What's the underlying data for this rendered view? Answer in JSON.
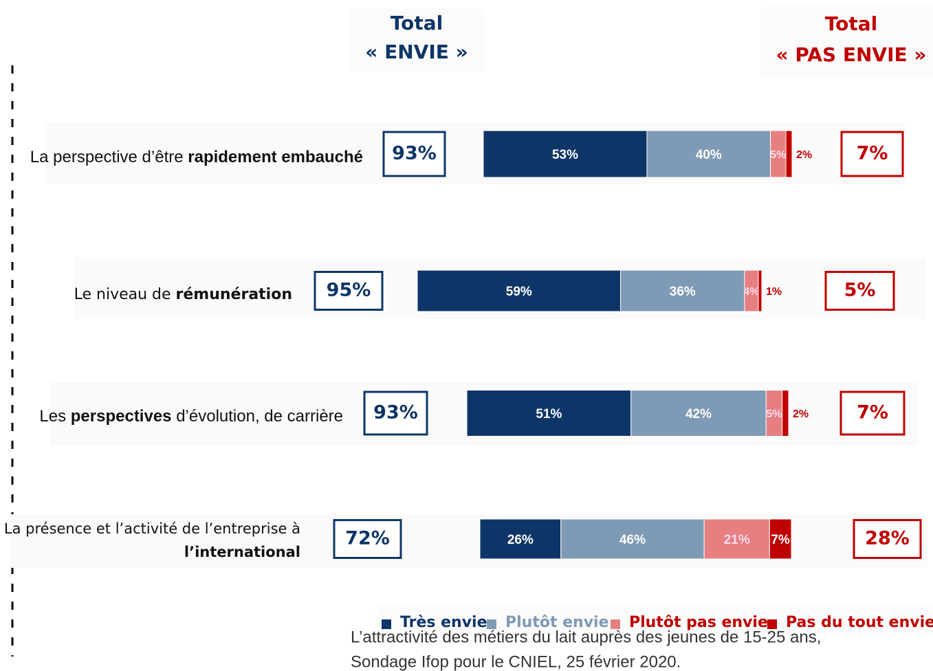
{
  "chart_data": {
    "type": "bar",
    "orientation": "horizontal",
    "stacked": true,
    "header_left": {
      "line1": "Total",
      "line2": "« ENVIE »"
    },
    "header_right": {
      "line1": "Total",
      "line2": "« PAS ENVIE »"
    },
    "categories": [
      [
        {
          "text": "La perspective d’être ",
          "bold": false
        },
        {
          "text": "rapidement embauché",
          "bold": true
        }
      ],
      [
        {
          "text": "Le niveau de ",
          "bold": false
        },
        {
          "text": "rémunération",
          "bold": true
        }
      ],
      [
        {
          "text": "Les ",
          "bold": false
        },
        {
          "text": "perspectives",
          "bold": true
        },
        {
          "text": " d’évolution, de carrière",
          "bold": false
        }
      ],
      [
        {
          "text": "La présence et l’activité de l’entreprise à",
          "bold": false
        },
        {
          "text": "l’international",
          "bold": true
        }
      ]
    ],
    "series": [
      {
        "name": "Très envie",
        "color": "#0e3567",
        "values": [
          53,
          59,
          51,
          26
        ],
        "value_labels": [
          "53%",
          "59%",
          "51%",
          "26%"
        ]
      },
      {
        "name": "Plutôt envie",
        "color": "#7f9ab4",
        "values": [
          40,
          36,
          42,
          46
        ],
        "value_labels": [
          "40%",
          "36%",
          "42%",
          "46%"
        ]
      },
      {
        "name": "Plutôt pas envie",
        "color": "#e67f80",
        "values": [
          5,
          4,
          5,
          21
        ],
        "value_labels": [
          "5%",
          "4%",
          "5%",
          "21%"
        ]
      },
      {
        "name": "Pas du tout envie",
        "color": "#c00000",
        "values": [
          2,
          1,
          2,
          7
        ],
        "value_labels": [
          "2%",
          "1%",
          "2%",
          "7%"
        ]
      }
    ],
    "total_envie": {
      "values": [
        93,
        95,
        93,
        72
      ],
      "value_labels": [
        "93%",
        "95%",
        "93%",
        "72%"
      ],
      "color": "#0e3567"
    },
    "total_pas_envie": {
      "values": [
        7,
        5,
        7,
        28
      ],
      "value_labels": [
        "7%",
        "5%",
        "7%",
        "28%"
      ],
      "color": "#c00000"
    },
    "xlim": [
      0,
      100
    ],
    "source": {
      "line1": "L’attractivité des métiers du lait auprès des jeunes de 15-25 ans,",
      "line2": "Sondage Ifop pour le CNIEL, 25 février 2020."
    }
  }
}
